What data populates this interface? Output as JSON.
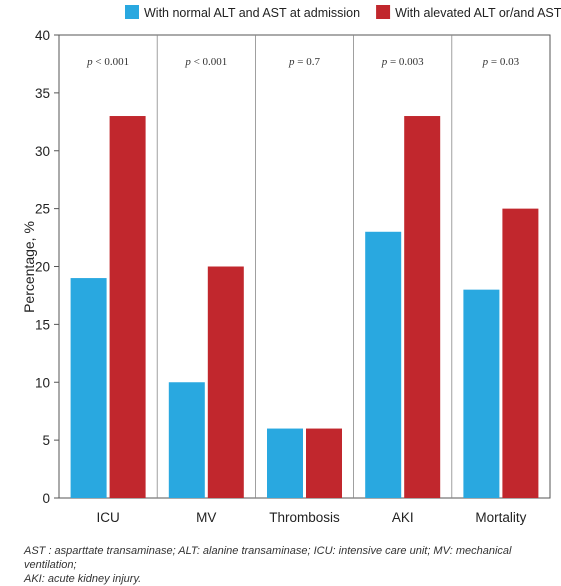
{
  "chart_data": {
    "type": "bar",
    "ylabel": "Percentage, %",
    "ylim": [
      0,
      40
    ],
    "yticks": [
      0,
      5,
      10,
      15,
      20,
      25,
      30,
      35,
      40
    ],
    "grid": "vertical separators between categories",
    "legend_position": "top",
    "categories": [
      "ICU",
      "MV",
      "Thrombosis",
      "AKI",
      "Mortality"
    ],
    "series": [
      {
        "name": "With normal ALT and AST at admission",
        "color": "#29a8e0",
        "values": [
          19,
          10,
          6,
          23,
          18
        ]
      },
      {
        "name": "With alevated ALT or/and AST at admission",
        "color": "#c1272d",
        "values": [
          33,
          20,
          6,
          33,
          25
        ]
      }
    ],
    "annotations": [
      {
        "var": "p",
        "op": "<",
        "value": "0.001"
      },
      {
        "var": "p",
        "op": "<",
        "value": "0.001"
      },
      {
        "var": "p",
        "op": "=",
        "value": "0.7"
      },
      {
        "var": "p",
        "op": "=",
        "value": "0.003"
      },
      {
        "var": "p",
        "op": "=",
        "value": "0.03"
      }
    ]
  },
  "footnote": {
    "line1": "AST : asparttate transaminase; ALT: alanine transaminase;  ICU: intensive care unit; MV: mechanical ventilation;",
    "line2": "AKI: acute kidney injury."
  }
}
